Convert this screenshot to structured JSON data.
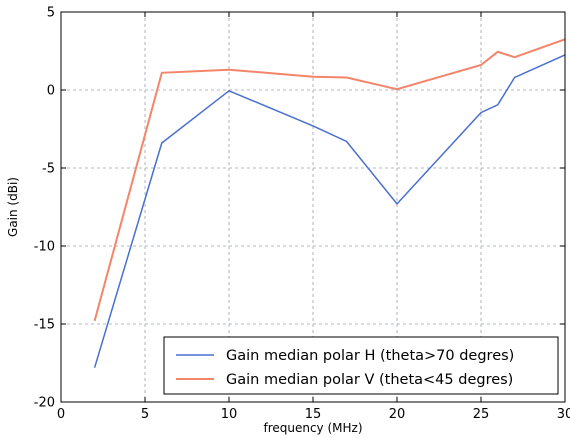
{
  "chart_data": {
    "type": "line",
    "xlabel": "frequency (MHz)",
    "ylabel": "Gain (dBi)",
    "xlim": [
      0,
      30
    ],
    "ylim": [
      -20,
      5
    ],
    "x_ticks": [
      0,
      5,
      10,
      15,
      20,
      25,
      30
    ],
    "y_ticks": [
      5,
      0,
      -5,
      -10,
      -15,
      -20
    ],
    "grid": true,
    "legend_position": "lower-right",
    "series": [
      {
        "name": "Gain median polar H (theta>70 degres)",
        "color": "#4a6fd0",
        "x": [
          2,
          6,
          10,
          15,
          17,
          20,
          25,
          26,
          27,
          30
        ],
        "y": [
          -17.8,
          -3.4,
          -0.05,
          -2.3,
          -3.3,
          -7.3,
          -1.45,
          -0.95,
          0.8,
          2.25
        ]
      },
      {
        "name": "Gain median polar V (theta<45 degres)",
        "color": "#f4856a",
        "x": [
          2,
          6,
          10,
          15,
          17,
          20,
          25,
          26,
          27,
          30
        ],
        "y": [
          -14.8,
          1.1,
          1.3,
          0.85,
          0.8,
          0.05,
          1.6,
          2.45,
          2.1,
          3.25
        ]
      }
    ]
  }
}
